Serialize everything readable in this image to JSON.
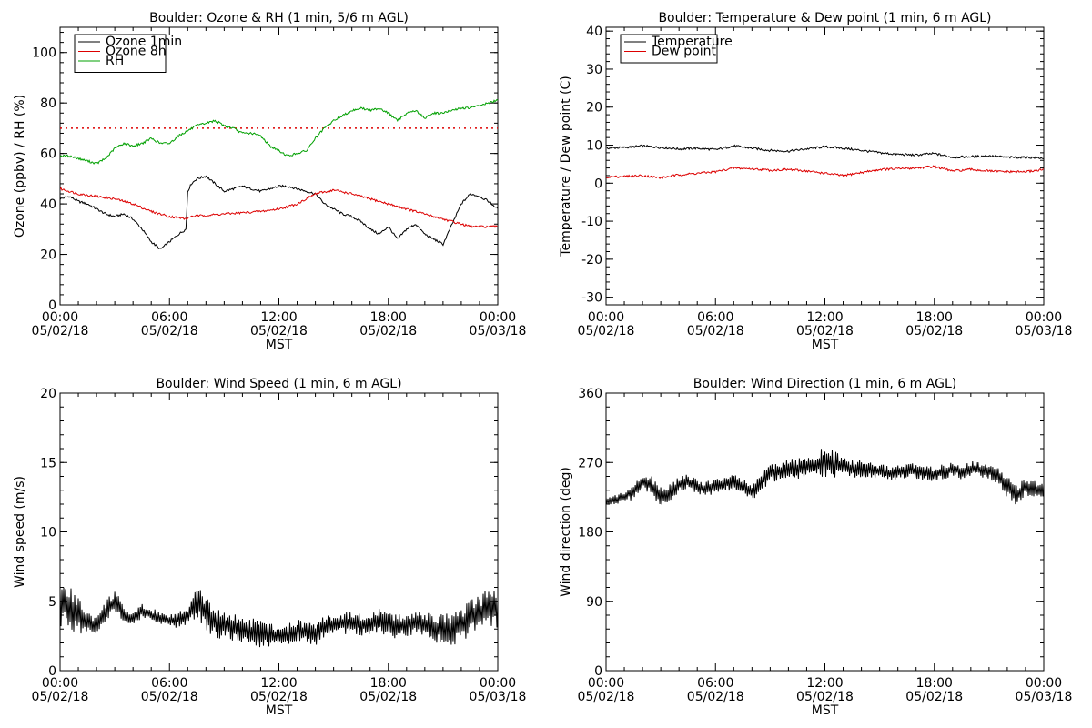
{
  "chart_data": [
    {
      "type": "line",
      "title": "Boulder: Ozone & RH (1 min, 5/6 m AGL)",
      "xlabel": "MST",
      "ylabel": "Ozone (ppbv) / RH (%)",
      "xlim": [
        0,
        24
      ],
      "ylim": [
        0,
        110
      ],
      "xticks": [
        0,
        6,
        12,
        18,
        24
      ],
      "xtick_labels": [
        [
          "00:00",
          "05/02/18"
        ],
        [
          "06:00",
          "05/02/18"
        ],
        [
          "12:00",
          "05/02/18"
        ],
        [
          "18:00",
          "05/02/18"
        ],
        [
          "00:00",
          "05/03/18"
        ]
      ],
      "yticks": [
        0,
        20,
        40,
        60,
        80,
        100
      ],
      "legend": "top-left",
      "reference_line": {
        "y": 70,
        "color": "#dd0000",
        "style": "dotted"
      },
      "series": [
        {
          "name": "Ozone 1min",
          "color": "#000000",
          "x": [
            0,
            0.5,
            1,
            1.5,
            2,
            2.5,
            3,
            3.5,
            4,
            4.5,
            5,
            5.5,
            6,
            6.5,
            6.9,
            7.0,
            7.2,
            7.5,
            8,
            8.5,
            9,
            9.5,
            10,
            10.5,
            11,
            11.5,
            12,
            12.5,
            13,
            13.5,
            14,
            14.5,
            15,
            15.5,
            16,
            16.5,
            17,
            17.5,
            18,
            18.5,
            19,
            19.5,
            20,
            20.5,
            21,
            21.5,
            22,
            22.5,
            23,
            23.5,
            24
          ],
          "y": [
            42,
            43,
            41,
            40,
            38,
            36,
            35,
            36,
            34,
            30,
            25,
            22,
            25,
            28,
            30,
            45,
            48,
            50,
            51,
            48,
            45,
            46,
            47,
            46,
            45,
            46,
            47,
            47,
            46,
            45,
            44,
            40,
            38,
            36,
            35,
            33,
            30,
            28,
            31,
            26,
            30,
            32,
            28,
            26,
            24,
            32,
            40,
            44,
            43,
            41,
            38
          ]
        },
        {
          "name": "Ozone 8h",
          "color": "#dd0000",
          "x": [
            0,
            1,
            2,
            3,
            4,
            5,
            6,
            7,
            7.1,
            8,
            9,
            10,
            11,
            12,
            13,
            14,
            15,
            16,
            17,
            18,
            19,
            20,
            21,
            22,
            22.5,
            23,
            24
          ],
          "y": [
            46,
            44,
            43,
            42,
            40,
            37,
            35,
            34,
            35,
            35.5,
            36,
            36.5,
            37,
            38,
            40,
            44,
            45.5,
            44,
            42,
            40,
            38,
            36,
            34,
            32,
            31,
            31,
            31
          ]
        },
        {
          "name": "RH",
          "color": "#00a000",
          "x": [
            0,
            0.5,
            1,
            1.5,
            2,
            2.5,
            3,
            3.5,
            4,
            4.5,
            5,
            5.5,
            6,
            6.5,
            7,
            7.5,
            8,
            8.5,
            9,
            9.5,
            10,
            10.5,
            11,
            11.5,
            12,
            12.5,
            13,
            13.5,
            14,
            14.5,
            15,
            15.5,
            16,
            16.5,
            17,
            17.5,
            18,
            18.5,
            19,
            19.5,
            20,
            20.5,
            21,
            21.5,
            22,
            22.5,
            23,
            23.5,
            24
          ],
          "y": [
            59,
            59,
            58,
            57,
            56,
            58,
            62,
            64,
            63,
            64,
            66,
            64,
            64,
            67,
            69,
            71,
            72,
            73,
            71,
            70,
            68,
            68,
            67,
            63,
            61,
            59,
            60,
            61,
            66,
            70,
            73,
            75,
            77,
            78,
            77,
            78,
            76,
            73,
            76,
            77,
            74,
            76,
            76,
            77,
            78,
            78,
            79,
            80,
            81
          ]
        }
      ]
    },
    {
      "type": "line",
      "title": "Boulder: Temperature & Dew point (1 min, 6 m AGL)",
      "xlabel": "MST",
      "ylabel": "Temperature / Dew point (C)",
      "xlim": [
        0,
        24
      ],
      "ylim": [
        -32,
        41
      ],
      "xticks": [
        0,
        6,
        12,
        18,
        24
      ],
      "xtick_labels": [
        [
          "00:00",
          "05/02/18"
        ],
        [
          "06:00",
          "05/02/18"
        ],
        [
          "12:00",
          "05/02/18"
        ],
        [
          "18:00",
          "05/02/18"
        ],
        [
          "00:00",
          "05/03/18"
        ]
      ],
      "yticks": [
        -30,
        -20,
        -10,
        0,
        10,
        20,
        30,
        40
      ],
      "legend": "top-left",
      "series": [
        {
          "name": "Temperature",
          "color": "#000000",
          "x": [
            0,
            1,
            2,
            3,
            4,
            5,
            6,
            7,
            8,
            9,
            10,
            11,
            12,
            13,
            14,
            15,
            16,
            17,
            18,
            19,
            20,
            21,
            22,
            23,
            24
          ],
          "y": [
            9.2,
            9.4,
            9.8,
            9.4,
            9.0,
            9.2,
            8.8,
            9.8,
            9.2,
            8.6,
            8.4,
            9.0,
            9.6,
            9.2,
            8.6,
            8.0,
            7.6,
            7.4,
            7.8,
            6.8,
            7.0,
            7.2,
            6.8,
            6.8,
            6.6
          ]
        },
        {
          "name": "Dew point",
          "color": "#dd0000",
          "x": [
            0,
            1,
            2,
            3,
            4,
            5,
            6,
            7,
            8,
            9,
            10,
            11,
            12,
            13,
            14,
            15,
            16,
            17,
            18,
            19,
            20,
            21,
            22,
            23,
            24
          ],
          "y": [
            1.6,
            1.8,
            2.0,
            1.4,
            2.2,
            2.6,
            3.0,
            4.0,
            3.8,
            3.4,
            3.6,
            3.2,
            2.6,
            2.0,
            2.8,
            3.6,
            3.8,
            4.0,
            4.4,
            3.2,
            3.6,
            3.2,
            3.0,
            3.0,
            3.6
          ]
        }
      ]
    },
    {
      "type": "line",
      "title": "Boulder: Wind Speed (1 min, 6 m AGL)",
      "xlabel": "MST",
      "ylabel": "Wind speed (m/s)",
      "xlim": [
        0,
        24
      ],
      "ylim": [
        0,
        20
      ],
      "xticks": [
        0,
        6,
        12,
        18,
        24
      ],
      "xtick_labels": [
        [
          "00:00",
          "05/02/18"
        ],
        [
          "06:00",
          "05/02/18"
        ],
        [
          "12:00",
          "05/02/18"
        ],
        [
          "18:00",
          "05/02/18"
        ],
        [
          "00:00",
          "05/03/18"
        ]
      ],
      "yticks": [
        0,
        5,
        10,
        15,
        20
      ],
      "series": [
        {
          "name": "",
          "color": "#000000",
          "x": [
            0,
            0.5,
            1,
            1.5,
            2,
            2.5,
            3,
            3.5,
            4,
            4.5,
            5,
            5.5,
            6,
            6.5,
            7,
            7.5,
            8,
            8.5,
            9,
            9.5,
            10,
            10.5,
            11,
            11.5,
            12,
            12.5,
            13,
            13.5,
            14,
            14.5,
            15,
            15.5,
            16,
            16.5,
            17,
            17.5,
            18,
            18.5,
            19,
            19.5,
            20,
            20.5,
            21,
            21.5,
            22,
            22.5,
            23,
            23.5,
            24
          ],
          "y": [
            5.0,
            4.6,
            4.0,
            3.5,
            3.3,
            4.2,
            5.0,
            4.0,
            3.7,
            4.3,
            4.0,
            3.8,
            3.6,
            3.7,
            3.9,
            5.0,
            4.1,
            3.5,
            3.3,
            3.1,
            2.9,
            2.8,
            2.6,
            2.6,
            2.4,
            2.6,
            2.9,
            2.8,
            2.6,
            3.2,
            3.3,
            3.4,
            3.5,
            3.3,
            3.4,
            3.6,
            3.3,
            3.2,
            3.4,
            3.4,
            3.3,
            3.1,
            3.0,
            3.0,
            3.4,
            3.8,
            4.2,
            4.4,
            4.5
          ],
          "spread": [
            1.8,
            1.6,
            1.4,
            0.8,
            0.6,
            0.8,
            1.0,
            0.5,
            0.5,
            0.5,
            0.5,
            0.5,
            0.5,
            0.6,
            0.6,
            1.2,
            1.2,
            1.2,
            1.0,
            1.0,
            1.0,
            1.0,
            1.0,
            1.0,
            0.6,
            0.8,
            0.8,
            0.8,
            0.8,
            0.8,
            0.8,
            0.8,
            0.8,
            0.8,
            0.9,
            0.9,
            0.9,
            0.9,
            0.9,
            0.9,
            0.9,
            1.0,
            1.2,
            1.2,
            1.3,
            1.3,
            1.4,
            1.4,
            1.4
          ]
        }
      ]
    },
    {
      "type": "line",
      "title": "Boulder: Wind Direction (1 min, 6 m AGL)",
      "xlabel": "MST",
      "ylabel": "Wind direction (deg)",
      "xlim": [
        0,
        24
      ],
      "ylim": [
        0,
        360
      ],
      "xticks": [
        0,
        6,
        12,
        18,
        24
      ],
      "xtick_labels": [
        [
          "00:00",
          "05/02/18"
        ],
        [
          "06:00",
          "05/02/18"
        ],
        [
          "12:00",
          "05/02/18"
        ],
        [
          "18:00",
          "05/02/18"
        ],
        [
          "00:00",
          "05/03/18"
        ]
      ],
      "yticks": [
        0,
        90,
        180,
        270,
        360
      ],
      "series": [
        {
          "name": "",
          "color": "#000000",
          "x": [
            0,
            0.5,
            1,
            1.5,
            2,
            2.5,
            3,
            3.5,
            4,
            4.5,
            5,
            5.5,
            6,
            6.5,
            7,
            7.5,
            8,
            8.5,
            9,
            9.5,
            10,
            10.5,
            11,
            11.5,
            12,
            12.5,
            13,
            13.5,
            14,
            14.5,
            15,
            15.5,
            16,
            16.5,
            17,
            17.5,
            18,
            18.5,
            19,
            19.5,
            20,
            20.5,
            21,
            21.5,
            22,
            22.5,
            23,
            23.5,
            24
          ],
          "y": [
            220,
            222,
            226,
            232,
            245,
            240,
            225,
            230,
            242,
            245,
            238,
            236,
            240,
            242,
            245,
            240,
            232,
            245,
            256,
            258,
            262,
            262,
            265,
            268,
            270,
            268,
            264,
            262,
            262,
            260,
            258,
            256,
            258,
            260,
            258,
            256,
            254,
            258,
            262,
            258,
            262,
            260,
            258,
            252,
            238,
            228,
            238,
            236,
            232
          ],
          "spread": [
            6,
            6,
            8,
            10,
            12,
            12,
            14,
            12,
            10,
            10,
            10,
            10,
            10,
            10,
            10,
            10,
            12,
            12,
            12,
            12,
            12,
            14,
            14,
            16,
            20,
            18,
            14,
            12,
            12,
            10,
            10,
            10,
            10,
            10,
            10,
            10,
            10,
            10,
            10,
            10,
            10,
            10,
            10,
            12,
            14,
            14,
            12,
            10,
            10
          ]
        }
      ]
    }
  ]
}
